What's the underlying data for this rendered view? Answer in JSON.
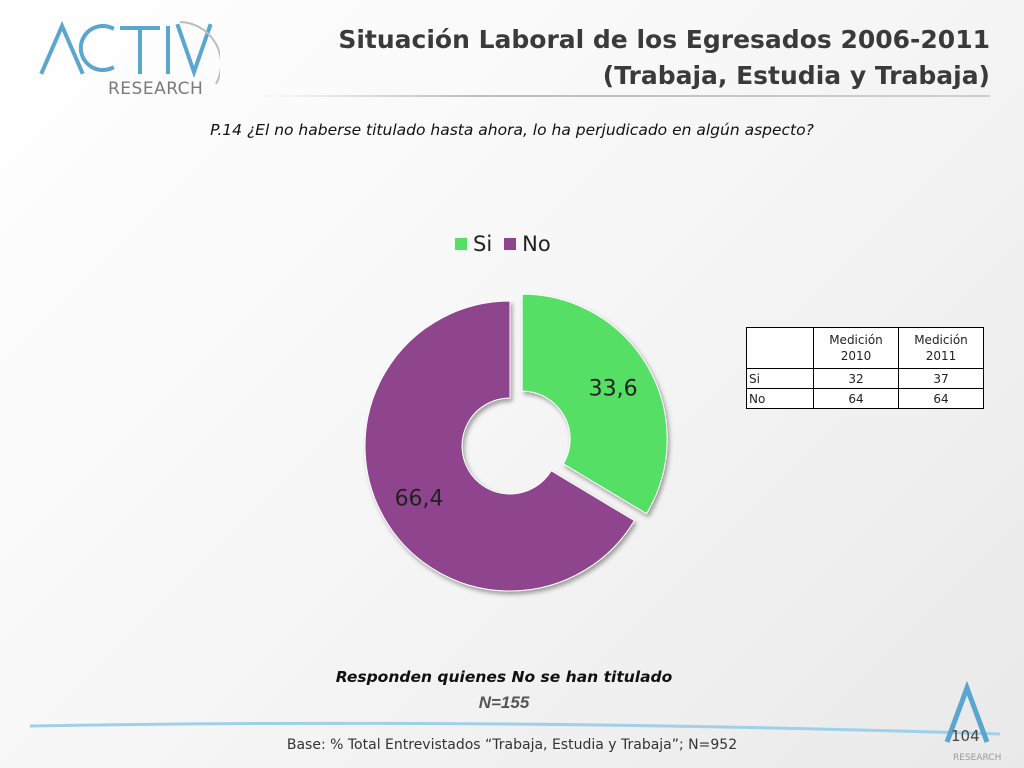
{
  "brand": {
    "logo_main": "ACTIVA",
    "logo_sub": "RESEARCH"
  },
  "header": {
    "title_line1": "Situación Laboral de los Egresados 2006-2011",
    "title_line2": "(Trabaja, Estudia y Trabaja)"
  },
  "question": "P.14 ¿El no haberse titulado hasta ahora, lo ha perjudicado en algún aspecto?",
  "colors": {
    "si": "#55e065",
    "no": "#8e458e"
  },
  "chart_data": {
    "type": "pie",
    "variant": "doughnut",
    "legend_position": "top",
    "categories": [
      "Si",
      "No"
    ],
    "values": [
      33.6,
      66.4
    ],
    "value_labels": [
      "33,6",
      "66,4"
    ]
  },
  "table": {
    "headers": [
      "",
      "Medición 2010",
      "Medición 2011"
    ],
    "rows": [
      {
        "label": "Si",
        "values": [
          "32",
          "37"
        ]
      },
      {
        "label": "No",
        "values": [
          "64",
          "64"
        ]
      }
    ]
  },
  "note": {
    "text": "Responden quienes No se han titulado",
    "n": "N=155"
  },
  "footer": {
    "base": "Base: % Total Entrevistados “Trabaja, Estudia y Trabaja”; N=952",
    "page": "104"
  }
}
